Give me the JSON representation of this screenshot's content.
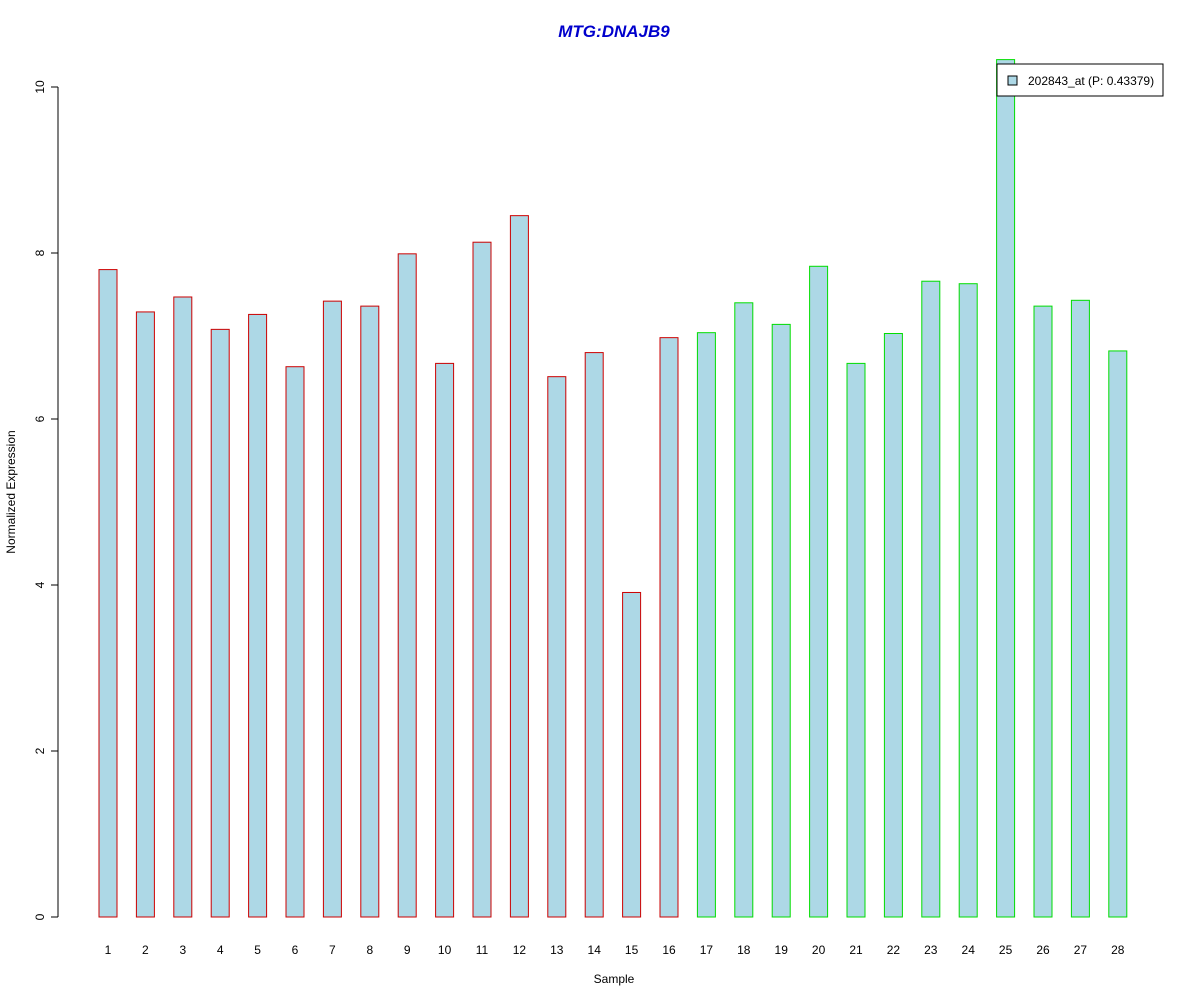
{
  "chart_data": {
    "type": "bar",
    "title": "MTG:DNAJB9",
    "xlabel": "Sample",
    "ylabel": "Normalized Expression",
    "categories": [
      "1",
      "2",
      "3",
      "4",
      "5",
      "6",
      "7",
      "8",
      "9",
      "10",
      "11",
      "12",
      "13",
      "14",
      "15",
      "16",
      "17",
      "18",
      "19",
      "20",
      "21",
      "22",
      "23",
      "24",
      "25",
      "26",
      "27",
      "28"
    ],
    "series": [
      {
        "name": "202843_at (P: 0.43379)",
        "values": [
          7.8,
          7.29,
          7.47,
          7.08,
          7.26,
          6.63,
          7.42,
          7.36,
          7.99,
          6.67,
          8.13,
          8.45,
          6.51,
          6.8,
          3.91,
          6.98,
          7.04,
          7.4,
          7.14,
          7.84,
          6.67,
          7.03,
          7.66,
          7.63,
          10.33,
          7.36,
          7.43,
          6.82
        ]
      }
    ],
    "group_edge_colors": [
      "#cc0000",
      "#cc0000",
      "#cc0000",
      "#cc0000",
      "#cc0000",
      "#cc0000",
      "#cc0000",
      "#cc0000",
      "#cc0000",
      "#cc0000",
      "#cc0000",
      "#cc0000",
      "#cc0000",
      "#cc0000",
      "#cc0000",
      "#cc0000",
      "#00dd00",
      "#00dd00",
      "#00dd00",
      "#00dd00",
      "#00dd00",
      "#00dd00",
      "#00dd00",
      "#00dd00",
      "#00dd00",
      "#00dd00",
      "#00dd00",
      "#00dd00"
    ],
    "yticks": [
      0,
      2,
      4,
      6,
      8,
      10
    ],
    "ylim": [
      0,
      10.33
    ],
    "grid": false,
    "legend_position": "top-right",
    "colors": {
      "bar_fill": "#add8e6",
      "title": "#0000cc",
      "axis": "#000000"
    }
  }
}
